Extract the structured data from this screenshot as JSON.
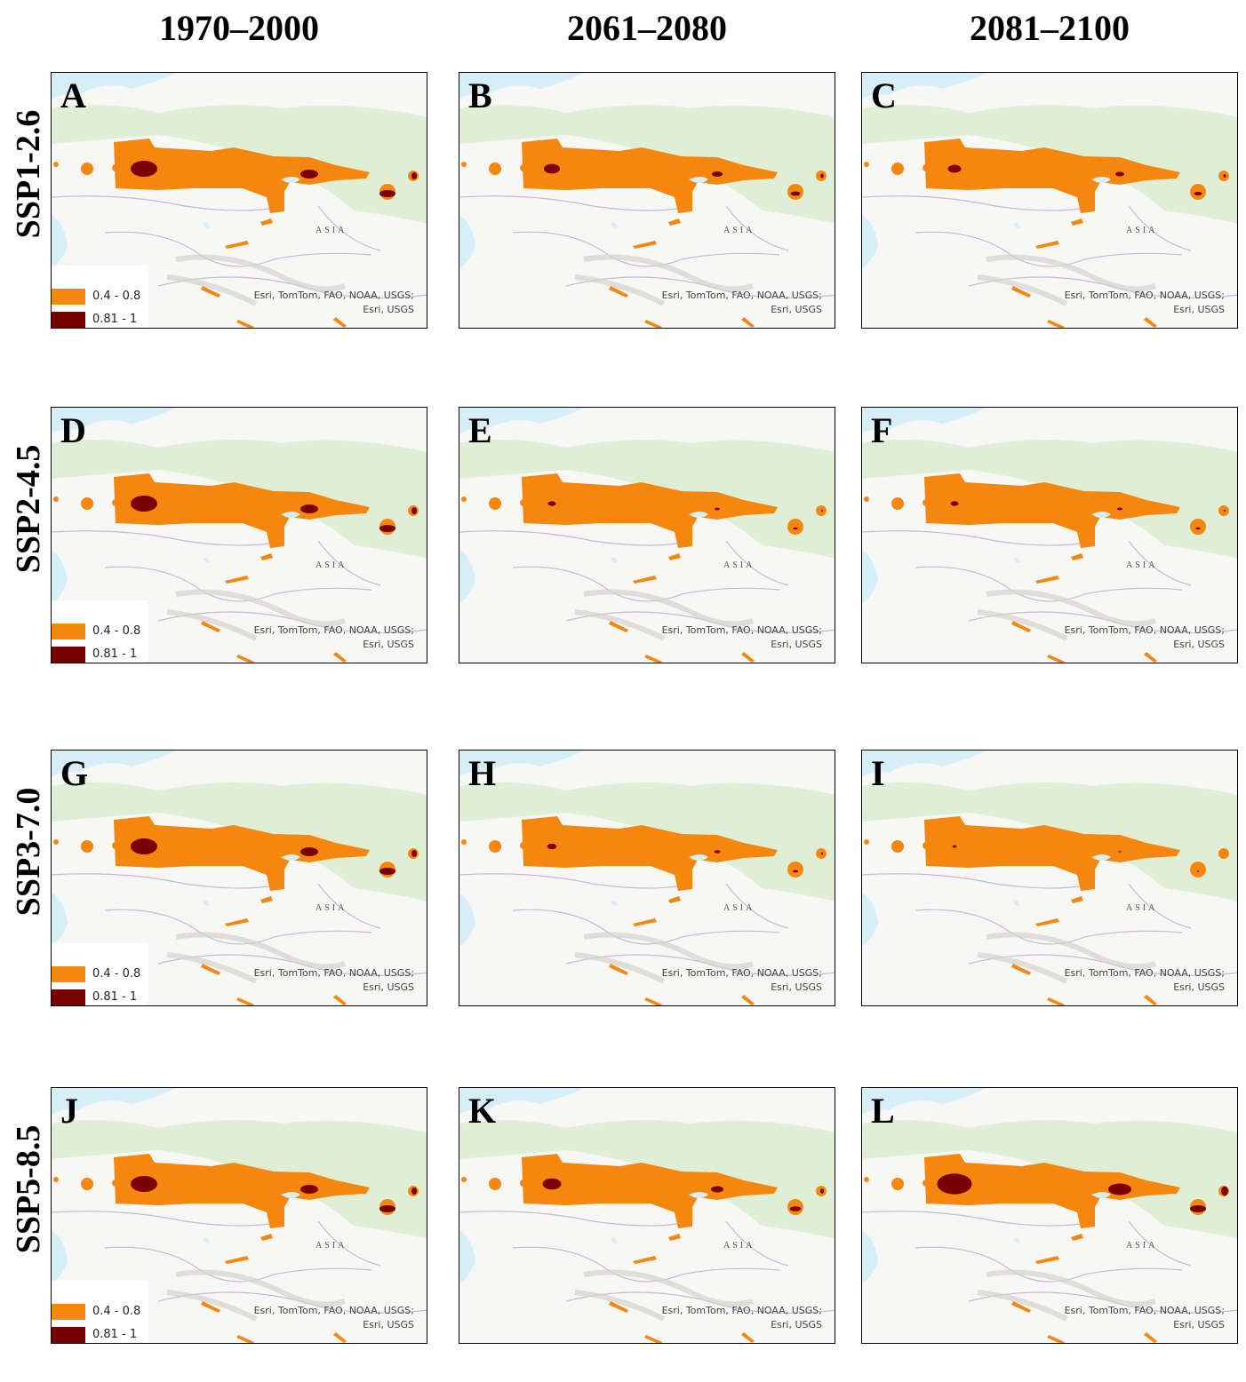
{
  "column_titles": [
    "1970–2000",
    "2061–2080",
    "2081–2100"
  ],
  "row_labels": [
    "SSP1-2.6",
    "SSP2-4.5",
    "SSP3-7.0",
    "SSP5-8.5"
  ],
  "panels": [
    {
      "letter": "A",
      "legend": true
    },
    {
      "letter": "B",
      "legend": false
    },
    {
      "letter": "C",
      "legend": false
    },
    {
      "letter": "D",
      "legend": true
    },
    {
      "letter": "E",
      "legend": false
    },
    {
      "letter": "F",
      "legend": false
    },
    {
      "letter": "G",
      "legend": true
    },
    {
      "letter": "H",
      "legend": false
    },
    {
      "letter": "I",
      "legend": false
    },
    {
      "letter": "J",
      "legend": true
    },
    {
      "letter": "K",
      "legend": false
    },
    {
      "letter": "L",
      "legend": false
    }
  ],
  "map_label": "ASIA",
  "attribution": [
    "Esri, TomTom, FAO, NOAA, USGS;",
    "Esri, USGS"
  ],
  "legend": [
    {
      "label": "0.4 - 0.8",
      "color": "#f5870f"
    },
    {
      "label": "0.81 - 1",
      "color": "#7a0000"
    }
  ],
  "colors": {
    "water": "#d6eef8",
    "forest": "#dfefd6",
    "land": "#f7f7f5",
    "borders": "#c9b8d6"
  }
}
